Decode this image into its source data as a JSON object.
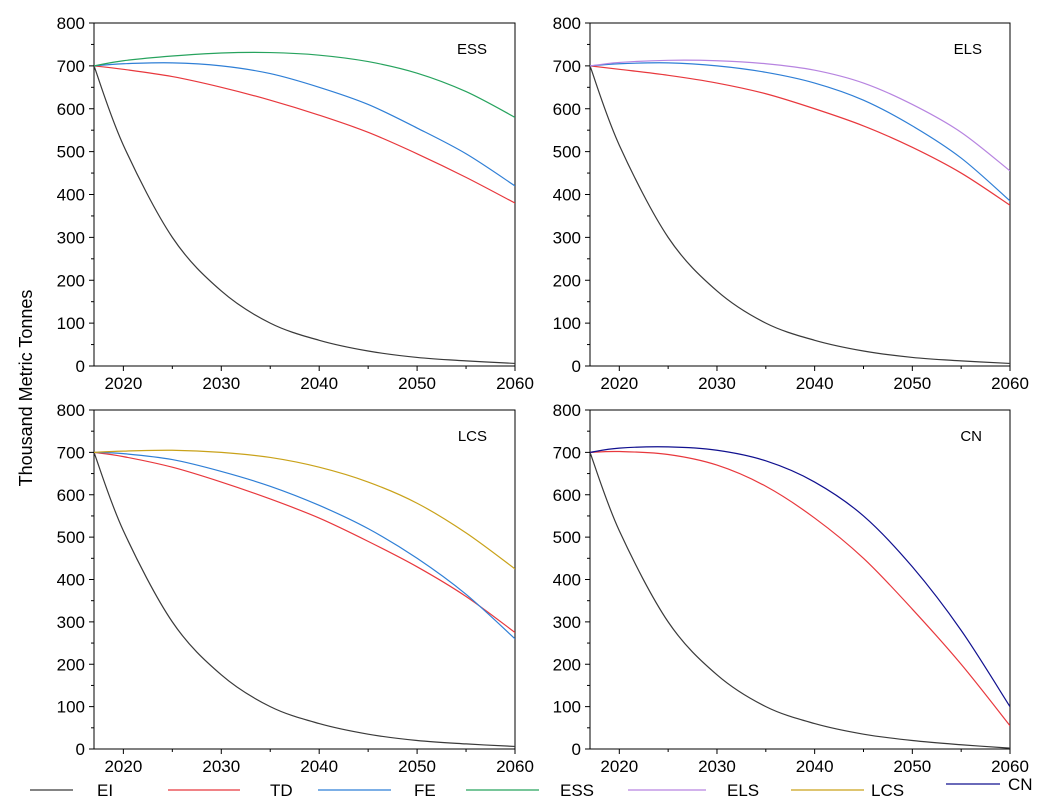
{
  "y_axis_title": "Thousand Metric Tonnes",
  "series_colors": {
    "EI": "#3a3a3a",
    "TD": "#e8383d",
    "FE": "#2f7fd6",
    "ESS": "#27a35e",
    "ELS": "#b784e0",
    "LCS": "#c9a21a",
    "CN": "#10108f"
  },
  "legend": [
    "EI",
    "TD",
    "FE",
    "ESS",
    "ELS",
    "LCS",
    "CN"
  ],
  "chart_data": [
    {
      "type": "line",
      "panel": "ESS",
      "xlim": [
        2017,
        2060
      ],
      "ylim": [
        0,
        800
      ],
      "x_ticks": [
        2020,
        2030,
        2040,
        2050,
        2060
      ],
      "y_ticks": [
        0,
        100,
        200,
        300,
        400,
        500,
        600,
        700,
        800
      ],
      "x": [
        2017,
        2020,
        2025,
        2030,
        2035,
        2040,
        2045,
        2050,
        2055,
        2060
      ],
      "series": [
        {
          "name": "EI",
          "values": [
            700,
            515,
            300,
            175,
            100,
            60,
            35,
            20,
            12,
            6
          ]
        },
        {
          "name": "TD",
          "values": [
            700,
            692,
            675,
            650,
            620,
            585,
            545,
            495,
            440,
            380
          ]
        },
        {
          "name": "FE",
          "values": [
            700,
            705,
            707,
            700,
            682,
            650,
            610,
            555,
            495,
            420
          ]
        },
        {
          "name": "ESS",
          "values": [
            700,
            712,
            723,
            730,
            731,
            725,
            710,
            683,
            640,
            580
          ]
        }
      ]
    },
    {
      "type": "line",
      "panel": "ELS",
      "xlim": [
        2017,
        2060
      ],
      "ylim": [
        0,
        800
      ],
      "x_ticks": [
        2020,
        2030,
        2040,
        2050,
        2060
      ],
      "y_ticks": [
        0,
        100,
        200,
        300,
        400,
        500,
        600,
        700,
        800
      ],
      "x": [
        2017,
        2020,
        2025,
        2030,
        2035,
        2040,
        2045,
        2050,
        2055,
        2060
      ],
      "series": [
        {
          "name": "EI",
          "values": [
            700,
            515,
            300,
            175,
            100,
            60,
            35,
            20,
            12,
            6
          ]
        },
        {
          "name": "TD",
          "values": [
            700,
            692,
            678,
            660,
            635,
            600,
            560,
            510,
            450,
            375
          ]
        },
        {
          "name": "FE",
          "values": [
            700,
            705,
            707,
            700,
            685,
            660,
            620,
            560,
            485,
            385
          ]
        },
        {
          "name": "ELS",
          "values": [
            700,
            708,
            713,
            712,
            705,
            690,
            660,
            610,
            545,
            455
          ]
        }
      ]
    },
    {
      "type": "line",
      "panel": "LCS",
      "xlim": [
        2017,
        2060
      ],
      "ylim": [
        0,
        800
      ],
      "x_ticks": [
        2020,
        2030,
        2040,
        2050,
        2060
      ],
      "y_ticks": [
        0,
        100,
        200,
        300,
        400,
        500,
        600,
        700,
        800
      ],
      "x": [
        2017,
        2020,
        2025,
        2030,
        2035,
        2040,
        2045,
        2050,
        2055,
        2060
      ],
      "series": [
        {
          "name": "EI",
          "values": [
            700,
            515,
            300,
            175,
            100,
            60,
            35,
            20,
            12,
            6
          ]
        },
        {
          "name": "TD",
          "values": [
            700,
            690,
            665,
            630,
            590,
            545,
            490,
            430,
            360,
            275
          ]
        },
        {
          "name": "FE",
          "values": [
            700,
            697,
            683,
            655,
            620,
            575,
            520,
            450,
            365,
            260
          ]
        },
        {
          "name": "LCS",
          "values": [
            700,
            703,
            705,
            700,
            688,
            665,
            630,
            580,
            510,
            425
          ]
        }
      ]
    },
    {
      "type": "line",
      "panel": "CN",
      "xlim": [
        2017,
        2060
      ],
      "ylim": [
        0,
        800
      ],
      "x_ticks": [
        2020,
        2030,
        2040,
        2050,
        2060
      ],
      "y_ticks": [
        0,
        100,
        200,
        300,
        400,
        500,
        600,
        700,
        800
      ],
      "x": [
        2017,
        2020,
        2025,
        2030,
        2035,
        2040,
        2045,
        2050,
        2055,
        2060
      ],
      "series": [
        {
          "name": "EI",
          "values": [
            700,
            515,
            300,
            175,
            100,
            60,
            35,
            20,
            10,
            2
          ]
        },
        {
          "name": "TD",
          "values": [
            700,
            702,
            695,
            670,
            620,
            545,
            450,
            330,
            200,
            55
          ]
        },
        {
          "name": "CN",
          "values": [
            700,
            710,
            713,
            705,
            680,
            630,
            550,
            430,
            280,
            100
          ]
        }
      ]
    }
  ]
}
